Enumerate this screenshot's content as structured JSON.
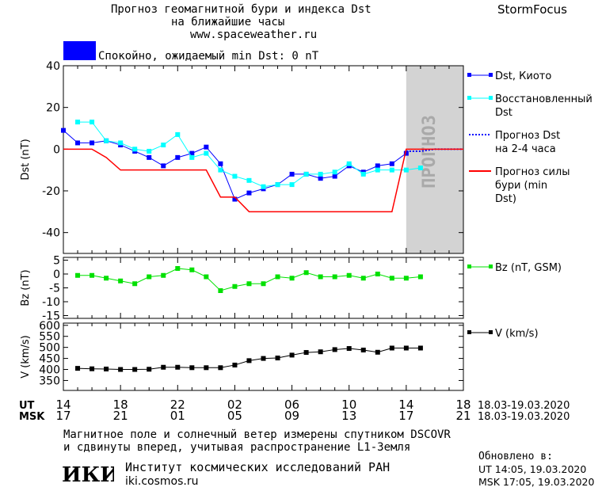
{
  "header": {
    "title_line1": "Прогноз геомагнитной бури и индекса Dst",
    "title_line2": "на ближайшие часы",
    "site": "www.spaceweather.ru",
    "brand": "StormFocus",
    "status_color": "#0000ff",
    "status_text": "Спокойно, ожидаемый min Dst: 0 nT"
  },
  "footer": {
    "note_line1": "Магнитное поле и солнечный ветер измерены спутником DSCOVR",
    "note_line2": "и сдвинуты вперед, учитывая распространение L1-Земля",
    "logo_text": "ИКИ",
    "institute": "Институт космических исследований РАН",
    "institute_url": "iki.cosmos.ru",
    "updated_label": "Обновлено в:",
    "updated_ut": "UT  14:05, 19.03.2020",
    "updated_msk": "MSK 17:05, 19.03.2020"
  },
  "chart_data": [
    {
      "type": "line",
      "ylabel": "Dst (nT)",
      "ylim": [
        -50,
        40
      ],
      "yticks": [
        40,
        20,
        0,
        -20,
        -40
      ],
      "xlim": [
        14,
        42
      ],
      "forecast_region": {
        "from": 42,
        "to": 38.0,
        "label": "ПРОГНОЗ",
        "color": "#d3d3d3"
      },
      "legend_position": "right",
      "series": [
        {
          "name": "Dst, Киото",
          "color": "#0000ff",
          "style": "line-square",
          "x": [
            14,
            15,
            16,
            17,
            18,
            19,
            20,
            21,
            22,
            23,
            24,
            25,
            26,
            27,
            28,
            29,
            30,
            31,
            32,
            33,
            34,
            35,
            36,
            37,
            38
          ],
          "y": [
            9,
            3,
            3,
            4,
            2,
            -1,
            -4,
            -8,
            -4,
            -2,
            1,
            -7,
            -24,
            -21,
            -19,
            -17,
            -12,
            -12,
            -14,
            -13,
            -8,
            -11,
            -8,
            -7,
            -2
          ]
        },
        {
          "name": "Восстановленный Dst",
          "color": "#00ffff",
          "style": "line-square",
          "x": [
            15,
            16,
            17,
            18,
            19,
            20,
            21,
            22,
            23,
            24,
            25,
            26,
            27,
            28,
            29,
            30,
            31,
            32,
            33,
            34,
            35,
            36,
            37,
            38,
            39
          ],
          "y": [
            13,
            13,
            4,
            3,
            0,
            -1,
            2,
            7,
            -4,
            -2,
            -10,
            -13,
            -15,
            -18,
            -17,
            -17,
            -12,
            -12,
            -11,
            -7,
            -12,
            -10,
            -10,
            -10,
            -9
          ]
        },
        {
          "name": "Прогноз Dst на 2-4 часа",
          "color": "#0000ff",
          "style": "dotted",
          "x": [
            38,
            39,
            40,
            41,
            42
          ],
          "y": [
            -1,
            -1,
            0,
            0,
            0
          ]
        },
        {
          "name": "Прогноз силы бури (min Dst)",
          "color": "#ff0000",
          "style": "step",
          "x": [
            14,
            16,
            17,
            18,
            19,
            20,
            21,
            22,
            23,
            24,
            25,
            26,
            27,
            28,
            29,
            30,
            31,
            32,
            33,
            34,
            35,
            36,
            37,
            38,
            42
          ],
          "y": [
            0,
            0,
            -4,
            -10,
            -10,
            -10,
            -10,
            -10,
            -10,
            -10,
            -23,
            -23,
            -30,
            -30,
            -30,
            -30,
            -30,
            -30,
            -30,
            -30,
            -30,
            -30,
            -30,
            0,
            0
          ]
        }
      ]
    },
    {
      "type": "line",
      "ylabel": "Bz (nT)",
      "ylim": [
        -16,
        6
      ],
      "yticks": [
        5,
        0,
        -5,
        -10,
        -15
      ],
      "series": [
        {
          "name": "Bz (nT, GSM)",
          "color": "#00e000",
          "x": [
            15,
            16,
            17,
            18,
            19,
            20,
            21,
            22,
            23,
            24,
            25,
            26,
            27,
            28,
            29,
            30,
            31,
            32,
            33,
            34,
            35,
            36,
            37,
            38,
            39
          ],
          "y": [
            -0.5,
            -0.5,
            -1.5,
            -2.5,
            -3.5,
            -1,
            -0.5,
            2,
            1.5,
            -1,
            -6,
            -4.5,
            -3.5,
            -3.5,
            -1,
            -1.5,
            0.5,
            -1,
            -1,
            -0.5,
            -1.5,
            0,
            -1.5,
            -1.5,
            -1
          ]
        }
      ]
    },
    {
      "type": "line",
      "ylabel": "V (km/s)",
      "ylim": [
        305,
        610
      ],
      "yticks": [
        600,
        550,
        500,
        450,
        400,
        350
      ],
      "xlabel_ut": "UT",
      "xlabel_msk": "MSK",
      "xticks_ut": [
        "14",
        "18",
        "22",
        "02",
        "06",
        "10",
        "14",
        "18"
      ],
      "xticks_msk": [
        "17",
        "21",
        "01",
        "05",
        "09",
        "13",
        "17",
        "21"
      ],
      "date_range_ut": "18.03-19.03.2020",
      "date_range_msk": "18.03-19.03.2020",
      "series": [
        {
          "name": "V (km/s)",
          "color": "#000000",
          "x": [
            15,
            16,
            17,
            18,
            19,
            20,
            21,
            22,
            23,
            24,
            25,
            26,
            27,
            28,
            29,
            30,
            31,
            32,
            33,
            34,
            35,
            36,
            37,
            38,
            39
          ],
          "y": [
            405,
            403,
            402,
            400,
            400,
            401,
            410,
            410,
            408,
            408,
            408,
            420,
            440,
            450,
            452,
            465,
            477,
            480,
            490,
            495,
            488,
            478,
            497,
            497,
            497
          ]
        }
      ]
    }
  ]
}
